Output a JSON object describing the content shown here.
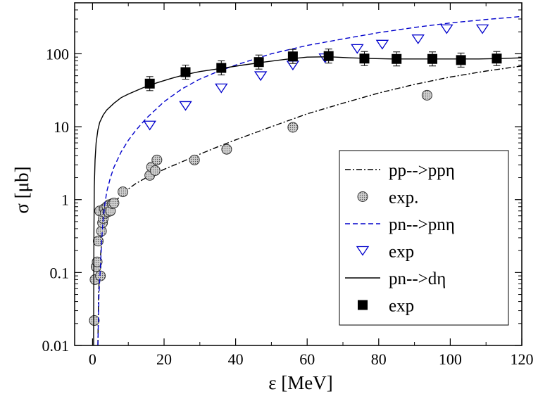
{
  "chart_data": {
    "type": "scatter",
    "xlabel": "ε [MeV]",
    "ylabel": "σ [μb]",
    "xlim": [
      -5,
      120
    ],
    "ylim": [
      0.01,
      500
    ],
    "yscale": "log",
    "grid": false,
    "legend_position": "bottom-right",
    "x_ticks": [
      0,
      20,
      40,
      60,
      80,
      100,
      120
    ],
    "x_tick_labels": [
      "0",
      "20",
      "40",
      "60",
      "80",
      "100",
      "120"
    ],
    "y_ticks": [
      0.01,
      0.1,
      1,
      10,
      100
    ],
    "y_tick_labels": [
      "0.01",
      "0.1",
      "1",
      "10",
      "100"
    ],
    "series": [
      {
        "name": "pp-->ppη",
        "kind": "line",
        "dash": "dashdot",
        "color": "#000000",
        "x": [
          1.5,
          1.7,
          2,
          2.5,
          3,
          4,
          5,
          6,
          8,
          10,
          12,
          15,
          20,
          25,
          30,
          35,
          40,
          50,
          60,
          70,
          80,
          90,
          100,
          110,
          120
        ],
        "y": [
          0.01,
          0.05,
          0.12,
          0.25,
          0.38,
          0.58,
          0.75,
          0.9,
          1.15,
          1.4,
          1.65,
          2.0,
          2.6,
          3.3,
          4.2,
          5.3,
          6.6,
          10.0,
          15.0,
          21.0,
          29.0,
          38.0,
          48.0,
          58.0,
          68.0
        ]
      },
      {
        "name": "exp.",
        "kind": "scatter",
        "marker": "circle-hatched",
        "color": "#555555",
        "x": [
          0.5,
          0.7,
          1.0,
          1.3,
          1.6,
          2.0,
          2.2,
          2.5,
          2.8,
          3.0,
          3.3,
          3.6,
          4.0,
          4.3,
          4.6,
          5.0,
          5.5,
          6.0,
          8.5,
          16.0,
          16.5,
          17.5,
          18.0,
          28.5,
          37.5,
          56.0,
          93.5
        ],
        "y": [
          0.022,
          0.08,
          0.12,
          0.14,
          0.27,
          0.7,
          0.09,
          0.37,
          0.48,
          0.55,
          0.75,
          0.65,
          0.8,
          0.68,
          0.85,
          0.7,
          0.88,
          0.9,
          1.28,
          2.15,
          2.8,
          2.5,
          3.5,
          3.5,
          4.9,
          9.8,
          27.0
        ]
      },
      {
        "name": "pn-->pnη",
        "kind": "line",
        "dash": "dashed",
        "color": "#0000cc",
        "x": [
          1.5,
          1.8,
          2.2,
          2.6,
          3,
          3.5,
          4,
          5,
          6,
          8,
          10,
          12,
          15,
          20,
          25,
          30,
          35,
          40,
          50,
          60,
          70,
          80,
          90,
          100,
          110,
          120
        ],
        "y": [
          0.01,
          0.05,
          0.12,
          0.3,
          0.55,
          0.9,
          1.3,
          2.0,
          2.8,
          4.5,
          6.5,
          8.8,
          13.0,
          22.0,
          33.0,
          45.0,
          57.0,
          70.0,
          100.0,
          130.0,
          160.0,
          195.0,
          230.0,
          265.0,
          295.0,
          325.0
        ]
      },
      {
        "name": "exp",
        "kind": "scatter",
        "marker": "triangle-down",
        "color": "#0000cc",
        "x": [
          16,
          26,
          36,
          47,
          56,
          65,
          74,
          81,
          91,
          99,
          109
        ],
        "y": [
          10.5,
          19.5,
          34.0,
          50.0,
          70.0,
          88.0,
          118.0,
          135.0,
          160.0,
          220.0,
          220.0
        ]
      },
      {
        "name": "pn-->dη",
        "kind": "line",
        "dash": "solid",
        "color": "#000000",
        "x": [
          0.3,
          0.35,
          0.4,
          0.5,
          0.7,
          1,
          1.5,
          2,
          3,
          4,
          6,
          8,
          10,
          14,
          18,
          22,
          26,
          30,
          36,
          42,
          48,
          54,
          60,
          66,
          72,
          78,
          84,
          90,
          96,
          102,
          108,
          114,
          120
        ],
        "y": [
          0.01,
          0.1,
          0.35,
          1.5,
          3.5,
          6.0,
          9.0,
          11.5,
          14.5,
          17.0,
          21.0,
          25.0,
          28.0,
          34.0,
          40.0,
          46.0,
          52.0,
          57.0,
          63.0,
          70.0,
          77.0,
          84.0,
          90.0,
          91.0,
          88.0,
          86.0,
          85.0,
          85.0,
          85.0,
          85.0,
          85.0,
          86.0,
          88.0
        ]
      },
      {
        "name": "exp",
        "kind": "scatter",
        "marker": "square",
        "color": "#000000",
        "x": [
          16,
          26,
          36,
          46.5,
          56,
          66,
          76,
          85,
          95,
          103,
          113
        ],
        "y": [
          39.0,
          56.0,
          64.0,
          77.0,
          92.0,
          93.0,
          86.0,
          85.0,
          85.0,
          82.0,
          86.0
        ]
      }
    ]
  }
}
